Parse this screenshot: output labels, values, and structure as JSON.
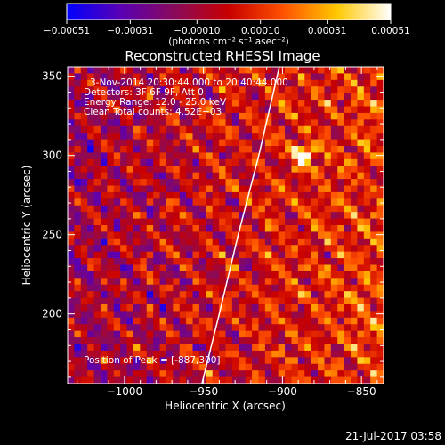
{
  "chart_data": {
    "type": "heatmap",
    "title": "Reconstructed RHESSI Image",
    "xlabel": "Heliocentric X (arcsec)",
    "ylabel": "Heliocentric Y (arcsec)",
    "xlim": [
      -1036,
      -836
    ],
    "ylim": [
      156,
      356
    ],
    "xticks": [
      -1000,
      -950,
      -900,
      -850
    ],
    "xtick_labels": [
      "−1000",
      "−950",
      "−900",
      "−850"
    ],
    "yticks": [
      200,
      250,
      300,
      350
    ],
    "ytick_labels": [
      "200",
      "250",
      "300",
      "350"
    ],
    "colorbar": {
      "vmin": -0.00051,
      "vmax": 0.00051,
      "ticks": [
        -0.00051,
        -0.00031,
        -0.0001,
        0.0001,
        0.00031,
        0.00051
      ],
      "tick_labels": [
        "−0.00051",
        "−0.00031",
        "−0.00010",
        "0.00010",
        "0.00031",
        "0.00051"
      ],
      "units_label": "(photons cm⁻² s⁻¹ asec⁻²)",
      "colors": [
        "#0000ff",
        "#5a00b4",
        "#8a0a5a",
        "#c80000",
        "#ff5000",
        "#ffc800",
        "#ffffff"
      ]
    },
    "info_lines": [
      "3-Nov-2014 20:30:44.000 to 20:40:44.000",
      "Detectors: 3F 6F 9F, Att 0",
      "Energy Range: 12.0 - 25.0 keV",
      "Clean    Total counts: 4.52E+03"
    ],
    "peak_label": "Position of Peak = [-887,300]",
    "peak_position": [
      -887,
      300
    ],
    "limb_curve": [
      [
        -951,
        156
      ],
      [
        -940,
        200
      ],
      [
        -928,
        250
      ],
      [
        -915,
        300
      ],
      [
        -902,
        356
      ]
    ],
    "background_color": "#000000"
  },
  "footer": {
    "timestamp": "21-Jul-2017 03:58"
  }
}
